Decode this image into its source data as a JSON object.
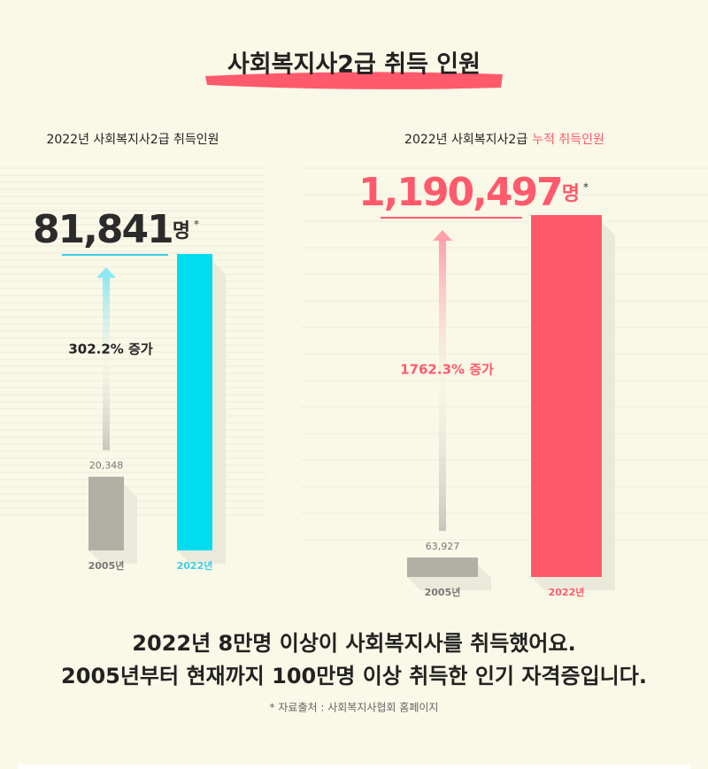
{
  "header": {
    "title": "사회복지사2급 취득 인원"
  },
  "chart_data": [
    {
      "type": "bar",
      "title": "2022년 사회복지사2급 취득인원",
      "categories": [
        "2005년",
        "2022년"
      ],
      "values": [
        20348,
        81841
      ],
      "value_labels": [
        "20,348",
        "81,841"
      ],
      "unit": "명",
      "note_mark": "*",
      "annotation": "302.2% 증가",
      "colors": [
        "#b2afa4",
        "#00dcf0"
      ],
      "accent": "#3ccfe8"
    },
    {
      "type": "bar",
      "title": "2022년 사회복지사2급",
      "title_highlight": "누적 취득인원",
      "categories": [
        "2005년",
        "2022년"
      ],
      "values": [
        63927,
        1190497
      ],
      "value_labels": [
        "63,927",
        "1,190,497"
      ],
      "unit": "명",
      "note_mark": "*",
      "annotation": "1762.3% 증가",
      "colors": [
        "#b2afa4",
        "#ff5a6c"
      ],
      "accent": "#ff5a6c"
    }
  ],
  "summary": [
    "2022년 8만명 이상이 사회복지사를 취득했어요.",
    "2005년부터 현재까지 100만명 이상 취득한 인기 자격증입니다."
  ],
  "source": "* 자료출처 : 사회복지사협회 홈페이지"
}
